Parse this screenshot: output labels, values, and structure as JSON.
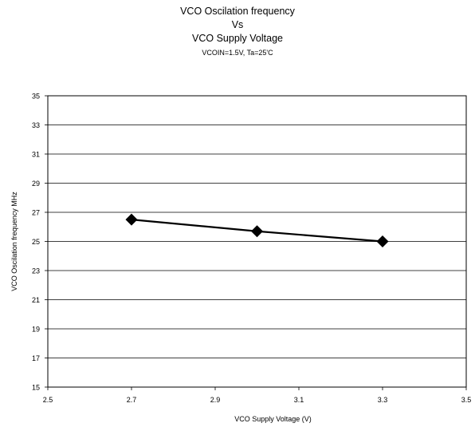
{
  "chart_data": {
    "type": "line",
    "title_lines": [
      "VCO Oscilation frequency",
      "Vs",
      "VCO Supply Voltage"
    ],
    "subtitle": "VCOIN=1.5V, Ta=25'C",
    "xlabel": "VCO Supply Voltage (V)",
    "ylabel": "VCO Oscilation frequency MHz",
    "xlim": [
      2.5,
      3.5
    ],
    "ylim": [
      15,
      35
    ],
    "x_ticks": [
      "2.5",
      "2.7",
      "2.9",
      "3.1",
      "3.3",
      "3.5"
    ],
    "y_ticks": [
      "15",
      "17",
      "19",
      "21",
      "23",
      "25",
      "27",
      "29",
      "31",
      "33",
      "35"
    ],
    "grid": "horizontal",
    "marker": "diamond",
    "series": [
      {
        "x": [
          2.7,
          3.0,
          3.3
        ],
        "values": [
          26.5,
          25.7,
          25.0
        ]
      }
    ]
  }
}
